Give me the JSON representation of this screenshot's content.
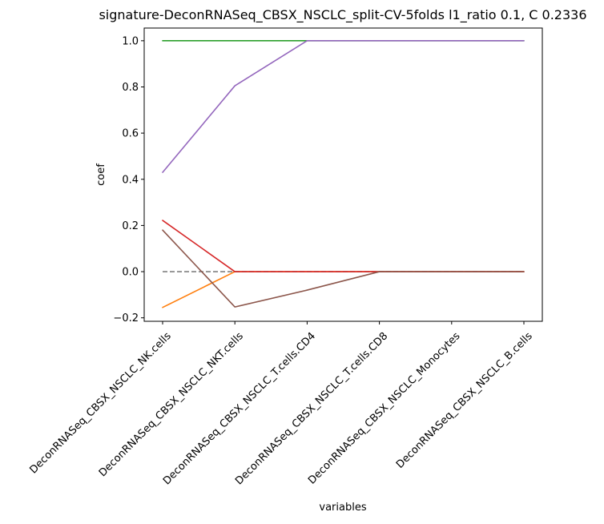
{
  "chart_data": {
    "type": "line",
    "title": "signature-DeconRNASeq_CBSX_NSCLC_split-CV-5folds l1_ratio 0.1, C 0.2336",
    "xlabel": "variables",
    "ylabel": "coef",
    "categories": [
      "DeconRNASeq_CBSX_NSCLC_NK.cells",
      "DeconRNASeq_CBSX_NSCLC_NKT.cells",
      "DeconRNASeq_CBSX_NSCLC_T.cells.CD4",
      "DeconRNASeq_CBSX_NSCLC_T.cells.CD8",
      "DeconRNASeq_CBSX_NSCLC_Monocytes",
      "DeconRNASeq_CBSX_NSCLC_B.cells"
    ],
    "ylim": [
      -0.215,
      1.055
    ],
    "yticks": [
      -0.2,
      0.0,
      0.2,
      0.4,
      0.6,
      0.8,
      1.0
    ],
    "ytick_labels": [
      "−0.2",
      "0.0",
      "0.2",
      "0.4",
      "0.6",
      "0.8",
      "1.0"
    ],
    "grid": false,
    "series": [
      {
        "color": "#ff7f0e",
        "dash": "solid",
        "values": [
          -0.155,
          0.0,
          0.0,
          0.0,
          0.0,
          0.0
        ]
      },
      {
        "color": "#2ca02c",
        "dash": "solid",
        "values": [
          1.0,
          1.0,
          1.0,
          1.0,
          1.0,
          1.0
        ]
      },
      {
        "color": "#808080",
        "dash": "dashed",
        "values": [
          0.0,
          0.0,
          0.0,
          0.0,
          0.0,
          0.0
        ]
      },
      {
        "color": "#9467bd",
        "dash": "solid",
        "values": [
          0.43,
          0.805,
          1.0,
          1.0,
          1.0,
          1.0
        ]
      },
      {
        "color": "#d62728",
        "dash": "solid",
        "values": [
          0.222,
          0.0,
          0.0,
          0.0,
          0.0,
          0.0
        ]
      },
      {
        "color": "#8c564b",
        "dash": "solid",
        "values": [
          0.18,
          -0.153,
          -0.08,
          0.0,
          0.0,
          0.0
        ]
      }
    ]
  }
}
